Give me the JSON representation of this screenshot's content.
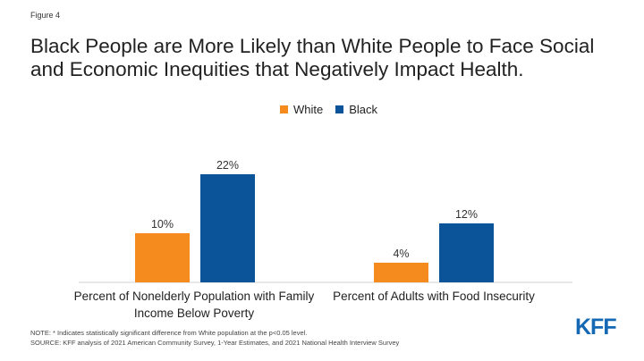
{
  "figure_label": "Figure 4",
  "title": "Black People are More Likely than White People to Face Social and Economic Inequities that Negatively Impact Health.",
  "note": "NOTE: * Indicates statistically significant difference from White population at the p<0.05 level.",
  "source": "SOURCE: KFF analysis of 2021 American Community Survey, 1-Year Estimates, and 2021 National Health Interview Survey",
  "logo_text": "KFF",
  "chart_data": {
    "type": "bar",
    "categories": [
      "Percent of Nonelderly Population with Family Income Below Poverty",
      "Percent of Adults with Food Insecurity"
    ],
    "series": [
      {
        "name": "White",
        "color": "#f58a1f",
        "values": [
          10,
          4
        ],
        "labels": [
          "10%",
          "4%"
        ]
      },
      {
        "name": "Black",
        "color": "#0b5499",
        "values": [
          22,
          12
        ],
        "labels": [
          "22%",
          "12%"
        ]
      }
    ],
    "ylim": [
      0,
      22
    ],
    "grid": false,
    "legend_placement": "top-center"
  }
}
